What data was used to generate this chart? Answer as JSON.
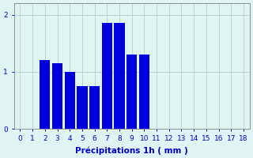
{
  "categories": [
    0,
    1,
    2,
    3,
    4,
    5,
    6,
    7,
    8,
    9,
    10,
    11,
    12,
    13,
    14,
    15,
    16,
    17,
    18
  ],
  "values": [
    0,
    0,
    1.2,
    1.15,
    1.0,
    0.75,
    0.75,
    1.85,
    1.85,
    1.3,
    1.3,
    0,
    0,
    0,
    0,
    0,
    0,
    0,
    0
  ],
  "bar_color": "#0000dd",
  "background_color": "#e0f4f4",
  "grid_color": "#b8d4d4",
  "xlabel": "Précipitations 1h ( mm )",
  "ylim": [
    0,
    2.2
  ],
  "xlim": [
    -0.5,
    18.5
  ],
  "yticks": [
    0,
    1,
    2
  ],
  "xticks": [
    0,
    1,
    2,
    3,
    4,
    5,
    6,
    7,
    8,
    9,
    10,
    11,
    12,
    13,
    14,
    15,
    16,
    17,
    18
  ],
  "tick_color": "#0000cc",
  "label_color": "#0000cc",
  "axis_color": "#909090",
  "xlabel_fontsize": 7.5,
  "tick_fontsize": 6.5,
  "bar_width": 0.85
}
